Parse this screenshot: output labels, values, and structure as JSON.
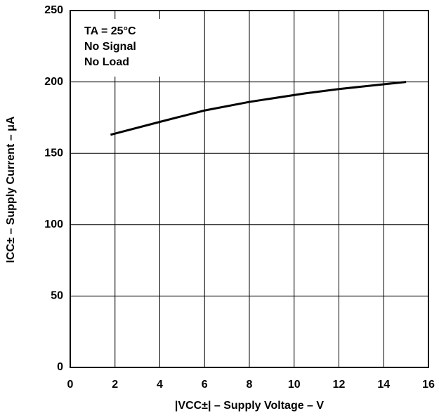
{
  "chart_data": {
    "type": "line",
    "xlabel": "|VCC±| – Supply Voltage – V",
    "ylabel": "ICC± – Supply Current – μA",
    "annotations": [
      "TA = 25°C",
      "No Signal",
      "No Load"
    ],
    "x": [
      1.8,
      4,
      6,
      8,
      10.5,
      12,
      15
    ],
    "series": [
      {
        "color": "#000000",
        "values": [
          163,
          172,
          180,
          186,
          192,
          195,
          200
        ]
      }
    ],
    "xlim": [
      0,
      16
    ],
    "xticks": [
      0,
      2,
      4,
      6,
      8,
      10,
      12,
      14,
      16
    ],
    "ylim": [
      0,
      250
    ],
    "yticks": [
      0,
      50,
      100,
      150,
      200,
      250
    ],
    "grid": true
  }
}
